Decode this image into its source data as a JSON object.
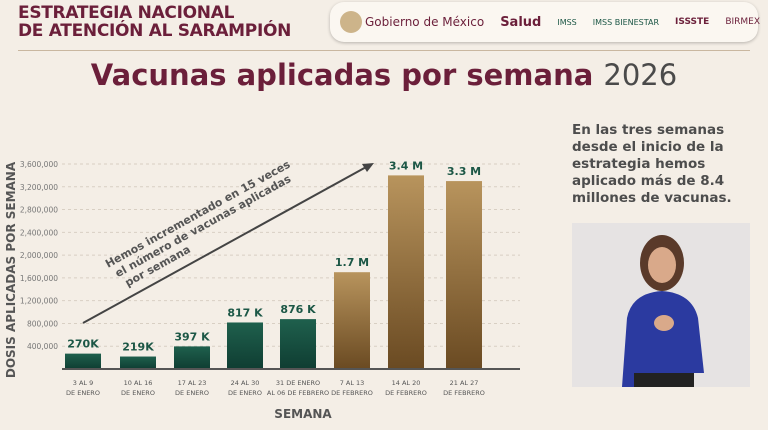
{
  "header": {
    "line1": "ESTRATEGIA NACIONAL",
    "line2": "DE ATENCIÓN AL SARAMPIÓN",
    "logos": [
      "Gobierno de México",
      "Salud",
      "IMSS",
      "IMSS BIENESTAR",
      "ISSSTE",
      "BIRMEX"
    ]
  },
  "title": {
    "main": "Vacunas aplicadas por semana",
    "year": "2026"
  },
  "side_text": "En las tres semanas desde el inicio de la estrategia hemos aplicado más de 8.4 millones de vacunas.",
  "colors": {
    "green": "#1c5746",
    "gold": "#b08a52",
    "maroon": "#6b1f3a"
  },
  "chart_data": {
    "type": "bar",
    "ylabel": "DOSIS APLICADAS POR SEMANA",
    "xlabel": "SEMANA",
    "ylim": [
      0,
      3600000
    ],
    "yticks": [
      "400,000",
      "800,000",
      "1,200,000",
      "1,600,000",
      "2,000,000",
      "2,400,000",
      "2,800,000",
      "3,200,000",
      "3,600,000"
    ],
    "ytick_values": [
      400000,
      800000,
      1200000,
      1600000,
      2000000,
      2400000,
      2800000,
      3200000,
      3600000
    ],
    "grid": true,
    "categories": [
      [
        "3 AL 9",
        "DE ENERO"
      ],
      [
        "10 AL 16",
        "DE ENERO"
      ],
      [
        "17 AL 23",
        "DE ENERO"
      ],
      [
        "24 AL 30",
        "DE ENERO"
      ],
      [
        "31 DE ENERO",
        "AL 06 DE FEBRERO"
      ],
      [
        "7 AL 13",
        "DE FEBRERO"
      ],
      [
        "14 AL 20",
        "DE FEBRERO"
      ],
      [
        "21 AL 27",
        "DE FEBRERO"
      ]
    ],
    "values": [
      270000,
      219000,
      397000,
      817000,
      876000,
      1700000,
      3400000,
      3300000
    ],
    "data_labels": [
      "270K",
      "219K",
      "397 K",
      "817 K",
      "876 K",
      "1.7 M",
      "3.4 M",
      "3.3 M"
    ],
    "bar_colors": [
      "green",
      "green",
      "green",
      "green",
      "green",
      "gold",
      "gold",
      "gold"
    ],
    "annotation": [
      "Hemos incrementado en 15 veces",
      "el número de vacunas aplicadas",
      "por semana"
    ]
  }
}
